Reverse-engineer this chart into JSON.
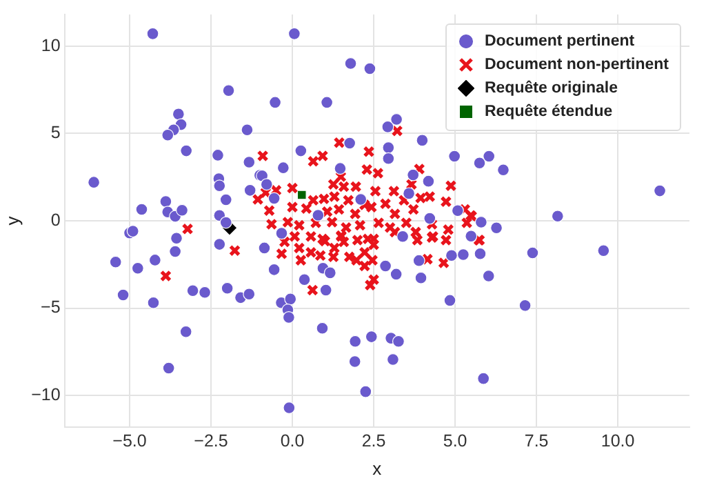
{
  "chart_data": {
    "type": "scatter",
    "xlabel": "x",
    "ylabel": "y",
    "xlim": [
      -7,
      12.2
    ],
    "ylim": [
      -11.8,
      11.8
    ],
    "xticks": [
      {
        "value": -5,
        "label": "−5.0"
      },
      {
        "value": -2.5,
        "label": "−2.5"
      },
      {
        "value": 0,
        "label": "0.0"
      },
      {
        "value": 2.5,
        "label": "2.5"
      },
      {
        "value": 5,
        "label": "5.0"
      },
      {
        "value": 7.5,
        "label": "7.5"
      },
      {
        "value": 10,
        "label": "10.0"
      }
    ],
    "yticks": [
      {
        "value": -10,
        "label": "−10"
      },
      {
        "value": -5,
        "label": "−5"
      },
      0,
      5,
      10
    ],
    "grid": true,
    "legend": "top right",
    "series": [
      {
        "name": "Document pertinent",
        "color": "#6a5acd",
        "marker": "circle",
        "x": [
          -4.29,
          -1.96,
          -3.5,
          -3.42,
          -3.65,
          -3.83,
          -1.39,
          -3.26,
          -2.29,
          -1.33,
          -6.1,
          -2.26,
          -2.24,
          -3.89,
          -2.04,
          -4.63,
          -3.83,
          -3.6,
          -3.39,
          -2.24,
          -2.04,
          -5.0,
          -4.9,
          -3.56,
          -2.24,
          -1.0,
          -3.6,
          -5.43,
          -4.75,
          -4.22,
          -5.2,
          -4.27,
          -3.06,
          -2.69,
          -2.0,
          -1.59,
          -3.27,
          -3.8,
          0.06,
          1.79,
          2.38,
          -0.53,
          1.06,
          2.93,
          3.2,
          3.99,
          2.95,
          2.95,
          1.76,
          0.26,
          4.98,
          5.75,
          1.47,
          -0.28,
          -0.93,
          3.71,
          4.18,
          -1.3,
          -0.56,
          -0.79,
          3.58,
          2.1,
          5.08,
          5.8,
          -0.33,
          3.39,
          5.49,
          0.79,
          4.22,
          -0.86,
          -0.56,
          -1.33,
          0.37,
          0.94,
          1.16,
          1.03,
          -0.34,
          -0.06,
          -0.14,
          -0.11,
          0.92,
          1.93,
          2.43,
          3.03,
          3.26,
          1.92,
          3.09,
          2.25,
          -0.1,
          2.86,
          3.19,
          3.95,
          3.89,
          4.84,
          4.89,
          5.25,
          5.77,
          5.87,
          6.04,
          6.48,
          11.29,
          8.15,
          6.27,
          7.38,
          9.56,
          6.03,
          7.15
        ],
        "values": [
          10.7,
          7.45,
          6.1,
          5.5,
          5.2,
          4.9,
          5.2,
          4.0,
          3.75,
          3.35,
          2.2,
          2.4,
          2.0,
          1.1,
          1.2,
          0.65,
          0.5,
          0.25,
          0.6,
          0.3,
          -0.1,
          -0.7,
          -0.6,
          -1.0,
          -1.35,
          2.6,
          -1.76,
          -2.36,
          -2.72,
          -2.25,
          -4.25,
          -4.69,
          -4.0,
          -4.1,
          -3.86,
          -4.4,
          -6.35,
          -8.43,
          10.7,
          9.0,
          8.7,
          6.77,
          6.77,
          5.37,
          5.8,
          4.6,
          4.18,
          3.56,
          4.44,
          4.0,
          3.69,
          3.3,
          2.99,
          3.03,
          2.57,
          2.62,
          2.26,
          1.74,
          1.28,
          2.08,
          1.56,
          1.22,
          0.58,
          -0.08,
          -0.72,
          -0.9,
          -0.88,
          0.31,
          0.13,
          -1.56,
          -2.8,
          -4.2,
          -3.37,
          -2.72,
          -2.98,
          -3.97,
          -4.69,
          -4.48,
          -5.1,
          -5.53,
          -6.15,
          -6.9,
          -6.64,
          -6.72,
          -6.9,
          -8.06,
          -7.94,
          -9.78,
          -10.7,
          -2.59,
          -3.06,
          -3.27,
          -2.28,
          -4.56,
          -1.99,
          -1.94,
          -1.89,
          -9.03,
          3.69,
          2.91,
          1.71,
          0.26,
          -0.41,
          -1.84,
          -1.71,
          -3.16,
          -4.85
        ]
      },
      {
        "name": "Document non-pertinent",
        "color": "#e8141c",
        "marker": "cross",
        "x": [
          -3.89,
          -1.77,
          -3.22,
          5.75,
          5.48,
          1.44,
          2.35,
          3.22,
          -0.91,
          0.64,
          0.93,
          3.9,
          2.29,
          2.63,
          1.49,
          1.26,
          1.58,
          1.95,
          2.55,
          3.12,
          3.66,
          4.87,
          -0.5,
          0,
          -1.06,
          -0.82,
          0.64,
          0.97,
          1.29,
          1.72,
          2.22,
          2.86,
          3.43,
          3.94,
          4.22,
          4.72,
          -0.71,
          0,
          0.43,
          1.07,
          1.43,
          1.93,
          2.43,
          3.15,
          3.72,
          5.3,
          5.51,
          -0.64,
          -0.14,
          0.21,
          0.72,
          1.22,
          1.65,
          2.08,
          2.65,
          3.0,
          3.5,
          3.79,
          4.29,
          4.79,
          5.36,
          0.07,
          0.57,
          1.0,
          1.5,
          2.0,
          2.5,
          3.15,
          4.29,
          -0.24,
          0.21,
          -0.33,
          0.26,
          0.57,
          0.86,
          1.26,
          1.29,
          0.93,
          1.58,
          1.75,
          1.97,
          2.22,
          2.22,
          2.46,
          2.5,
          2.32,
          0.62,
          2.5,
          2.39,
          3.84,
          4.15,
          4.32,
          4.65,
          4.72,
          5.73,
          1.5
        ],
        "values": [
          -3.16,
          -1.71,
          -0.47,
          -1.11,
          0.3,
          4.47,
          3.95,
          5.14,
          3.71,
          3.4,
          3.71,
          2.96,
          2.93,
          2.72,
          2.52,
          2.08,
          1.95,
          1.95,
          1.69,
          1.69,
          2.08,
          2.0,
          1.74,
          1.87,
          1.22,
          1.61,
          1.17,
          1.25,
          1.38,
          1.17,
          0.91,
          0.97,
          1.17,
          1.3,
          1.38,
          1.09,
          0.58,
          0.78,
          0.7,
          0.52,
          0.65,
          0.39,
          0.78,
          0.39,
          0.65,
          0.65,
          0.26,
          -0.2,
          -0.08,
          -0.26,
          -0.12,
          -0.08,
          -0.39,
          -0.26,
          -0.12,
          -0.39,
          -0.12,
          -0.65,
          -0.2,
          -0.51,
          -0.12,
          -0.9,
          -0.9,
          -1.17,
          -0.9,
          -1.11,
          -1.04,
          -0.65,
          -0.96,
          -1.21,
          -1.56,
          -1.89,
          -2.26,
          -1.81,
          -1.99,
          -2.07,
          -1.56,
          -1.04,
          -1.21,
          -2.07,
          -2.26,
          -1.81,
          -2.59,
          -2.26,
          -1.37,
          -1.04,
          -3.97,
          -3.37,
          -3.68,
          -1.11,
          -2.2,
          -0.9,
          -2.41,
          -1.11,
          -1.11,
          -0.85
        ]
      },
      {
        "name": "Requête originale",
        "color": "#000000",
        "marker": "diamond",
        "x": [
          -1.93
        ],
        "values": [
          -0.41
        ]
      },
      {
        "name": "Requête étendue",
        "color": "#006400",
        "marker": "square",
        "x": [
          0.29
        ],
        "values": [
          1.48
        ]
      }
    ]
  }
}
